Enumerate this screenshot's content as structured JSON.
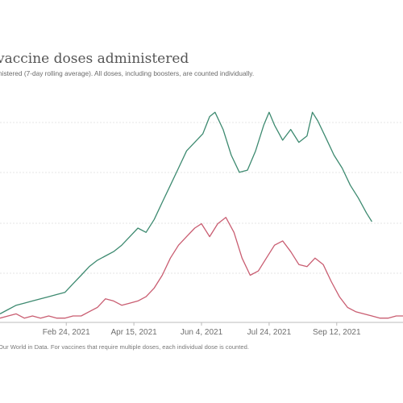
{
  "header": {
    "title": "vaccine doses administered",
    "subtitle": "nistered (7-day rolling average). All doses, including boosters, are counted individually."
  },
  "footer": {
    "source": "Our World in Data. For vaccines that require multiple doses, each individual dose is counted."
  },
  "colors": {
    "series_a": "#3d8a70",
    "series_b": "#c95d71",
    "grid": "#e4e4e4",
    "axis": "#bbbbbb"
  },
  "chart_data": {
    "type": "line",
    "title": "vaccine doses administered",
    "xlabel": "",
    "ylabel": "",
    "x_ticks": [
      "Feb 24, 2021",
      "Apr 15, 2021",
      "Jun 4, 2021",
      "Jul 24, 2021",
      "Sep 12, 2021"
    ],
    "x_range": [
      "2021-01-06",
      "2021-10-31"
    ],
    "y_range": [
      0,
      100
    ],
    "grid": "horizontal",
    "legend": "none",
    "series": [
      {
        "points": [
          [
            "2021-01-06",
            4
          ],
          [
            "2021-01-12",
            6
          ],
          [
            "2021-01-18",
            8
          ],
          [
            "2021-01-24",
            9
          ],
          [
            "2021-01-30",
            10
          ],
          [
            "2021-02-05",
            11
          ],
          [
            "2021-02-11",
            12
          ],
          [
            "2021-02-17",
            13
          ],
          [
            "2021-02-23",
            14
          ],
          [
            "2021-03-01",
            18
          ],
          [
            "2021-03-07",
            22
          ],
          [
            "2021-03-13",
            26
          ],
          [
            "2021-03-19",
            29
          ],
          [
            "2021-03-25",
            31
          ],
          [
            "2021-03-31",
            33
          ],
          [
            "2021-04-06",
            36
          ],
          [
            "2021-04-12",
            40
          ],
          [
            "2021-04-18",
            44
          ],
          [
            "2021-04-24",
            42
          ],
          [
            "2021-04-30",
            48
          ],
          [
            "2021-05-06",
            56
          ],
          [
            "2021-05-12",
            64
          ],
          [
            "2021-05-18",
            72
          ],
          [
            "2021-05-24",
            80
          ],
          [
            "2021-05-30",
            84
          ],
          [
            "2021-06-05",
            88
          ],
          [
            "2021-06-10",
            96
          ],
          [
            "2021-06-14",
            98
          ],
          [
            "2021-06-20",
            90
          ],
          [
            "2021-06-26",
            78
          ],
          [
            "2021-07-02",
            70
          ],
          [
            "2021-07-08",
            71
          ],
          [
            "2021-07-14",
            80
          ],
          [
            "2021-07-20",
            92
          ],
          [
            "2021-07-24",
            98
          ],
          [
            "2021-07-28",
            92
          ],
          [
            "2021-08-03",
            85
          ],
          [
            "2021-08-09",
            90
          ],
          [
            "2021-08-15",
            84
          ],
          [
            "2021-08-21",
            87
          ],
          [
            "2021-08-25",
            98
          ],
          [
            "2021-08-29",
            94
          ],
          [
            "2021-09-04",
            86
          ],
          [
            "2021-09-10",
            78
          ],
          [
            "2021-09-16",
            72
          ],
          [
            "2021-09-22",
            64
          ],
          [
            "2021-09-28",
            58
          ],
          [
            "2021-10-04",
            51
          ],
          [
            "2021-10-08",
            47
          ]
        ]
      },
      {
        "points": [
          [
            "2021-01-06",
            2
          ],
          [
            "2021-01-12",
            3
          ],
          [
            "2021-01-18",
            4
          ],
          [
            "2021-01-24",
            2
          ],
          [
            "2021-01-30",
            3
          ],
          [
            "2021-02-05",
            2
          ],
          [
            "2021-02-11",
            3
          ],
          [
            "2021-02-17",
            2
          ],
          [
            "2021-02-23",
            2
          ],
          [
            "2021-03-01",
            3
          ],
          [
            "2021-03-07",
            3
          ],
          [
            "2021-03-13",
            5
          ],
          [
            "2021-03-19",
            7
          ],
          [
            "2021-03-25",
            11
          ],
          [
            "2021-03-31",
            10
          ],
          [
            "2021-04-06",
            8
          ],
          [
            "2021-04-12",
            9
          ],
          [
            "2021-04-18",
            10
          ],
          [
            "2021-04-24",
            12
          ],
          [
            "2021-04-30",
            16
          ],
          [
            "2021-05-06",
            22
          ],
          [
            "2021-05-12",
            30
          ],
          [
            "2021-05-18",
            36
          ],
          [
            "2021-05-24",
            40
          ],
          [
            "2021-05-30",
            44
          ],
          [
            "2021-06-04",
            46
          ],
          [
            "2021-06-10",
            40
          ],
          [
            "2021-06-16",
            46
          ],
          [
            "2021-06-22",
            49
          ],
          [
            "2021-06-28",
            42
          ],
          [
            "2021-07-04",
            30
          ],
          [
            "2021-07-10",
            22
          ],
          [
            "2021-07-16",
            24
          ],
          [
            "2021-07-22",
            30
          ],
          [
            "2021-07-28",
            36
          ],
          [
            "2021-08-03",
            38
          ],
          [
            "2021-08-09",
            33
          ],
          [
            "2021-08-15",
            27
          ],
          [
            "2021-08-21",
            26
          ],
          [
            "2021-08-27",
            30
          ],
          [
            "2021-09-02",
            27
          ],
          [
            "2021-09-08",
            19
          ],
          [
            "2021-09-14",
            12
          ],
          [
            "2021-09-20",
            7
          ],
          [
            "2021-09-26",
            5
          ],
          [
            "2021-10-02",
            4
          ],
          [
            "2021-10-08",
            3
          ],
          [
            "2021-10-14",
            2
          ],
          [
            "2021-10-20",
            2
          ],
          [
            "2021-10-26",
            3
          ],
          [
            "2021-10-31",
            3
          ]
        ]
      }
    ]
  }
}
